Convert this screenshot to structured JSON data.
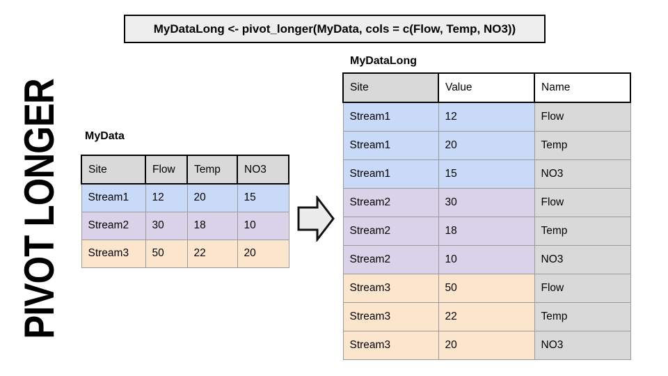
{
  "title": "PIVOT LONGER",
  "code": "MyDataLong <- pivot_longer(MyData, cols = c(Flow, Temp, NO3))",
  "colors": {
    "blue": "#c9daf8",
    "purple": "#d9d2e9",
    "orange": "#fce5cd",
    "gray": "#d9d9d9",
    "code_bg": "#eeeeee",
    "arrow_fill": "#ececec"
  },
  "wide_table": {
    "title": "MyData",
    "headers": [
      "Site",
      "Flow",
      "Temp",
      "NO3"
    ],
    "rows": [
      {
        "cells": [
          "Stream1",
          "12",
          "20",
          "15"
        ],
        "color": "blue"
      },
      {
        "cells": [
          "Stream2",
          "30",
          "18",
          "10"
        ],
        "color": "purple"
      },
      {
        "cells": [
          "Stream3",
          "50",
          "22",
          "20"
        ],
        "color": "orange"
      }
    ]
  },
  "long_table": {
    "title": "MyDataLong",
    "headers": [
      "Site",
      "Value",
      "Name"
    ],
    "rows": [
      {
        "cells": [
          "Stream1",
          "12",
          "Flow"
        ],
        "color": "blue"
      },
      {
        "cells": [
          "Stream1",
          "20",
          "Temp"
        ],
        "color": "blue"
      },
      {
        "cells": [
          "Stream1",
          "15",
          "NO3"
        ],
        "color": "blue"
      },
      {
        "cells": [
          "Stream2",
          "30",
          "Flow"
        ],
        "color": "purple"
      },
      {
        "cells": [
          "Stream2",
          "18",
          "Temp"
        ],
        "color": "purple"
      },
      {
        "cells": [
          "Stream2",
          "10",
          "NO3"
        ],
        "color": "purple"
      },
      {
        "cells": [
          "Stream3",
          "50",
          "Flow"
        ],
        "color": "orange"
      },
      {
        "cells": [
          "Stream3",
          "22",
          "Temp"
        ],
        "color": "orange"
      },
      {
        "cells": [
          "Stream3",
          "20",
          "NO3"
        ],
        "color": "orange"
      }
    ]
  },
  "arrow_icon": "right-block-arrow"
}
